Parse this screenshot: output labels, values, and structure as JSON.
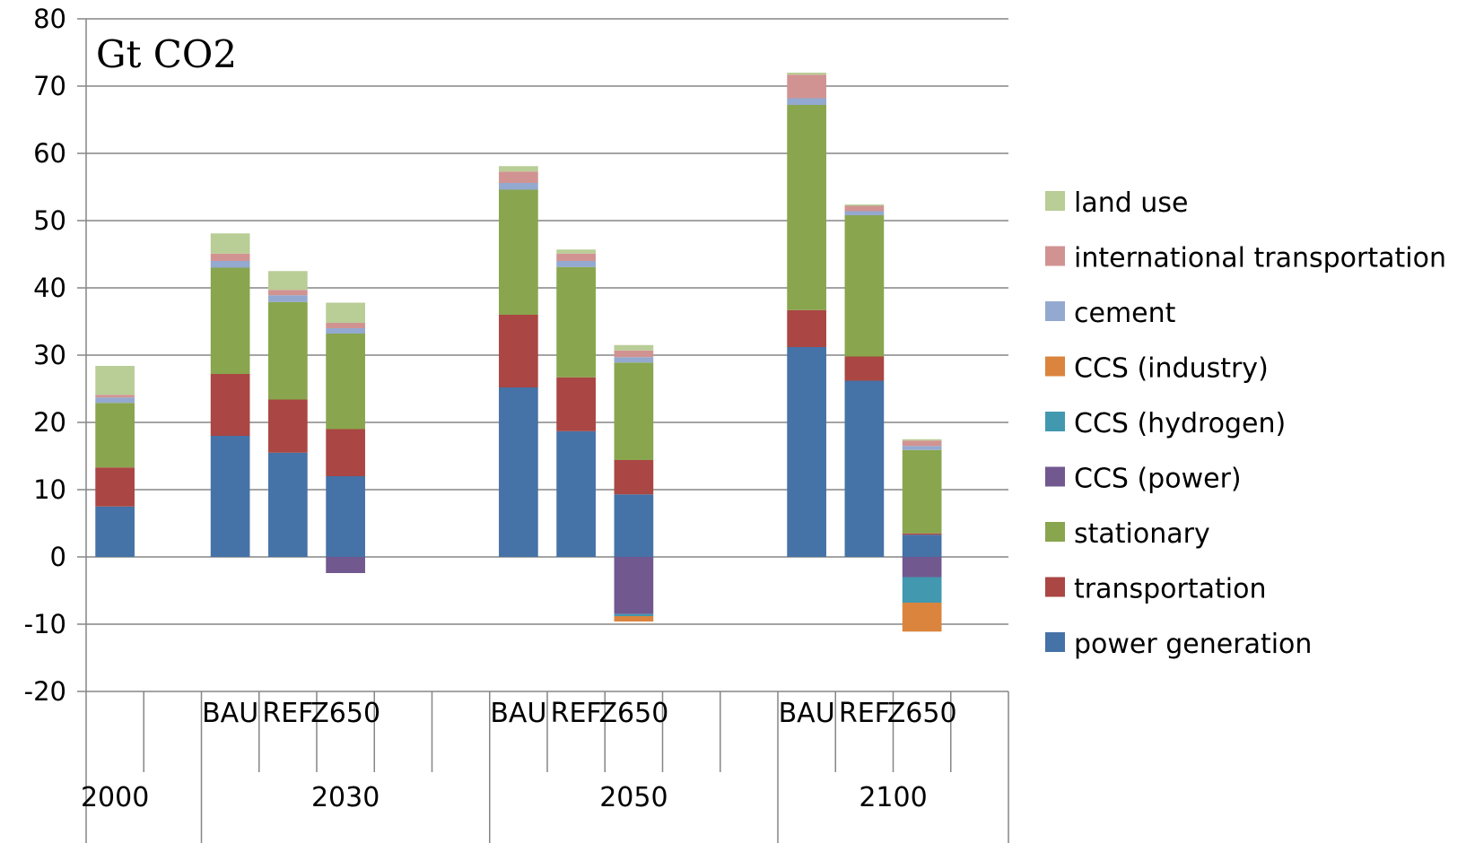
{
  "chart_data": {
    "type": "bar",
    "stacked": true,
    "unit_label": "Gt CO2",
    "ylim": [
      -20,
      80
    ],
    "yticks": [
      -20,
      -10,
      0,
      10,
      20,
      30,
      40,
      50,
      60,
      70,
      80
    ],
    "grid": true,
    "legend_position": "right",
    "groups": [
      {
        "label": "2000",
        "bars": [
          {
            "label": ""
          }
        ]
      },
      {
        "label": "2030",
        "bars": [
          {
            "label": "BAU"
          },
          {
            "label": "REF"
          },
          {
            "label": "Z650"
          }
        ]
      },
      {
        "label": "2050",
        "bars": [
          {
            "label": "BAU"
          },
          {
            "label": "REF"
          },
          {
            "label": "Z650"
          }
        ]
      },
      {
        "label": "2100",
        "bars": [
          {
            "label": "BAU"
          },
          {
            "label": "REF"
          },
          {
            "label": "Z650"
          }
        ]
      }
    ],
    "categories": [
      "2000",
      "2030 BAU",
      "2030 REF",
      "2030 Z650",
      "2050 BAU",
      "2050 REF",
      "2050 Z650",
      "2100 BAU",
      "2100 REF",
      "2100 Z650"
    ],
    "series": [
      {
        "name": "power generation",
        "color": "#4572a7",
        "values": [
          7.5,
          18.0,
          15.5,
          12.0,
          25.2,
          18.7,
          9.3,
          31.2,
          26.2,
          3.3
        ]
      },
      {
        "name": "transportation",
        "color": "#aa4643",
        "values": [
          5.8,
          9.2,
          7.9,
          7.0,
          10.8,
          8.0,
          5.1,
          5.5,
          3.6,
          0.2
        ]
      },
      {
        "name": "stationary",
        "color": "#89a54e",
        "values": [
          9.6,
          15.8,
          14.5,
          14.2,
          18.6,
          16.4,
          14.5,
          30.5,
          21.0,
          12.4
        ]
      },
      {
        "name": "CCS (power)",
        "color": "#71588f",
        "values": [
          0,
          0,
          0,
          -2.4,
          0,
          0,
          -8.5,
          0,
          0,
          -3.0
        ]
      },
      {
        "name": "CCS (hydrogen)",
        "color": "#4198af",
        "values": [
          0,
          0,
          0,
          0,
          0,
          0,
          -0.3,
          0,
          0,
          -3.8
        ]
      },
      {
        "name": "CCS (industry)",
        "color": "#db843d",
        "values": [
          0,
          0,
          0,
          0,
          0,
          0,
          -0.8,
          0,
          0,
          -4.3
        ]
      },
      {
        "name": "cement",
        "color": "#93a9cf",
        "values": [
          0.8,
          1.0,
          1.0,
          0.8,
          1.0,
          0.9,
          0.8,
          1.0,
          0.6,
          0.6
        ]
      },
      {
        "name": "international transportation",
        "color": "#d19392",
        "values": [
          0.4,
          1.1,
          0.8,
          0.8,
          1.7,
          1.1,
          1.0,
          3.5,
          0.8,
          0.8
        ]
      },
      {
        "name": "land use",
        "color": "#b9cd96",
        "values": [
          4.3,
          3.0,
          2.8,
          3.0,
          0.8,
          0.6,
          0.8,
          0.3,
          0.2,
          0.2
        ]
      }
    ],
    "legend_order": [
      "land use",
      "international transportation",
      "cement",
      "CCS (industry)",
      "CCS (hydrogen)",
      "CCS (power)",
      "stationary",
      "transportation",
      "power generation"
    ]
  }
}
